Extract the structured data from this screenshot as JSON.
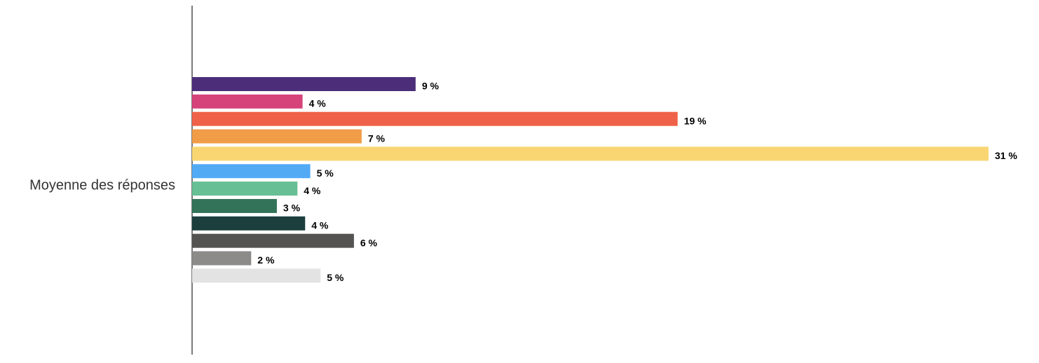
{
  "chart_data": {
    "type": "hbar",
    "categories": [
      "Moyenne des réponses"
    ],
    "xlim": [
      0,
      31
    ],
    "series": [
      {
        "color": "#4b2d7a",
        "values": [
          8.7
        ],
        "value_labels": [
          "9 %"
        ]
      },
      {
        "color": "#d6437a",
        "values": [
          4.3
        ],
        "value_labels": [
          "4 %"
        ]
      },
      {
        "color": "#ef6148",
        "values": [
          18.9
        ],
        "value_labels": [
          "19 %"
        ]
      },
      {
        "color": "#f19c47",
        "values": [
          6.6
        ],
        "value_labels": [
          "7 %"
        ]
      },
      {
        "color": "#f9d672",
        "values": [
          31
        ],
        "value_labels": [
          "31 %"
        ]
      },
      {
        "color": "#52aaf5",
        "values": [
          4.6
        ],
        "value_labels": [
          "5 %"
        ]
      },
      {
        "color": "#66bf95",
        "values": [
          4.1
        ],
        "value_labels": [
          "4 %"
        ]
      },
      {
        "color": "#33735a",
        "values": [
          3.3
        ],
        "value_labels": [
          "3 %"
        ]
      },
      {
        "color": "#1c3f3d",
        "values": [
          4.4
        ],
        "value_labels": [
          "4 %"
        ]
      },
      {
        "color": "#555252",
        "values": [
          6.3
        ],
        "value_labels": [
          "6 %"
        ]
      },
      {
        "color": "#8d8a8a",
        "values": [
          2.3
        ],
        "value_labels": [
          "2 %"
        ]
      },
      {
        "color": "#e3e3e3",
        "values": [
          5
        ],
        "value_labels": [
          "5 %"
        ]
      }
    ]
  }
}
